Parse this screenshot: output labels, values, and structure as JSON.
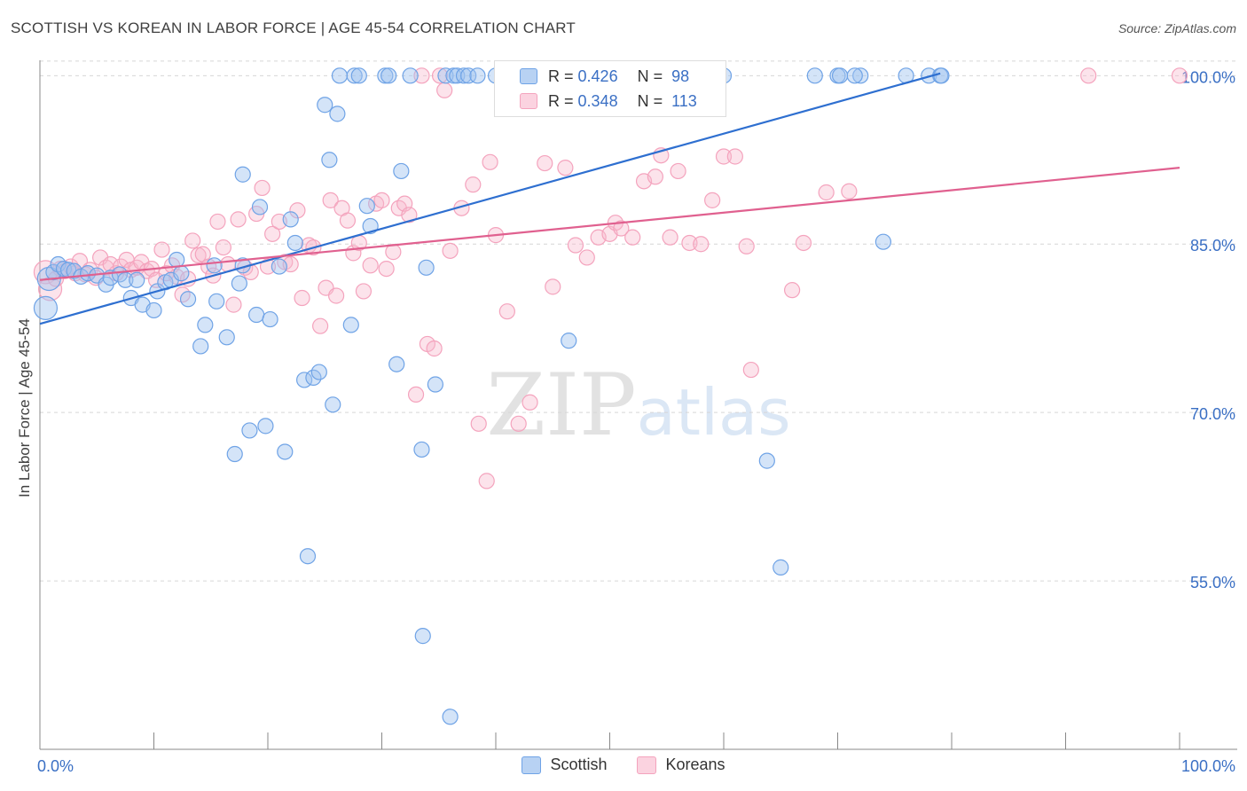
{
  "title": "SCOTTISH VS KOREAN IN LABOR FORCE | AGE 45-54 CORRELATION CHART",
  "source": "Source: ZipAtlas.com",
  "watermark": "ZIPatlas",
  "legend_top": {
    "rows": [
      {
        "r_label": "R =",
        "r_value": "0.426",
        "n_label": "N =",
        "n_value": "98"
      },
      {
        "r_label": "R =",
        "r_value": "0.348",
        "n_label": "N =",
        "n_value": "113"
      }
    ]
  },
  "chart_data": {
    "type": "scatter",
    "title": "SCOTTISH VS KOREAN IN LABOR FORCE | AGE 45-54 CORRELATION CHART",
    "xlabel": "",
    "ylabel": "In Labor Force | Age 45-54",
    "xlim": [
      0,
      100
    ],
    "ylim": [
      40,
      102
    ],
    "x_tick_labels": [
      "0.0%",
      "100.0%"
    ],
    "y_ticks": [
      55,
      70,
      85,
      100
    ],
    "y_tick_labels": [
      "55.0%",
      "70.0%",
      "85.0%",
      "100.0%"
    ],
    "grid": true,
    "legend_position": "bottom",
    "series": [
      {
        "name": "Scottish",
        "color": "#6fa3e6",
        "line_color": "#2e6fd0",
        "trend": {
          "x": [
            0,
            79
          ],
          "y": [
            77.9,
            100.2
          ]
        },
        "points": [
          [
            0.5,
            79.3
          ],
          [
            0.8,
            81.9
          ],
          [
            1.2,
            82.5
          ],
          [
            1.6,
            83.2
          ],
          [
            2.1,
            82.8
          ],
          [
            2.5,
            82.7
          ],
          [
            3.0,
            82.6
          ],
          [
            3.6,
            82.1
          ],
          [
            4.2,
            82.4
          ],
          [
            5.0,
            82.2
          ],
          [
            5.8,
            81.4
          ],
          [
            6.2,
            82.0
          ],
          [
            7.0,
            82.3
          ],
          [
            7.5,
            81.8
          ],
          [
            8.0,
            80.2
          ],
          [
            8.5,
            81.8
          ],
          [
            9.0,
            79.6
          ],
          [
            10.0,
            79.1
          ],
          [
            10.3,
            80.8
          ],
          [
            11.0,
            81.6
          ],
          [
            11.5,
            81.8
          ],
          [
            12.0,
            83.6
          ],
          [
            12.4,
            82.4
          ],
          [
            13.0,
            80.1
          ],
          [
            14.1,
            75.9
          ],
          [
            14.5,
            77.8
          ],
          [
            15.3,
            83.1
          ],
          [
            15.5,
            79.9
          ],
          [
            16.4,
            76.7
          ],
          [
            17.1,
            66.3
          ],
          [
            17.5,
            81.5
          ],
          [
            17.8,
            83.1
          ],
          [
            17.8,
            91.2
          ],
          [
            18.4,
            68.4
          ],
          [
            19.0,
            78.7
          ],
          [
            19.3,
            88.3
          ],
          [
            19.8,
            68.8
          ],
          [
            20.2,
            78.3
          ],
          [
            21.0,
            83.0
          ],
          [
            21.5,
            66.5
          ],
          [
            22.0,
            87.2
          ],
          [
            22.4,
            85.1
          ],
          [
            23.2,
            72.9
          ],
          [
            23.5,
            57.2
          ],
          [
            24.0,
            73.1
          ],
          [
            24.5,
            73.6
          ],
          [
            25.0,
            97.4
          ],
          [
            25.4,
            92.5
          ],
          [
            25.7,
            70.7
          ],
          [
            26.1,
            96.6
          ],
          [
            26.3,
            100.0
          ],
          [
            27.3,
            77.8
          ],
          [
            27.6,
            100.0
          ],
          [
            28.0,
            100.0
          ],
          [
            28.7,
            88.4
          ],
          [
            29.0,
            86.6
          ],
          [
            30.3,
            100.0
          ],
          [
            30.6,
            100.0
          ],
          [
            31.3,
            74.3
          ],
          [
            31.7,
            91.5
          ],
          [
            32.5,
            100.0
          ],
          [
            33.6,
            50.1
          ],
          [
            33.5,
            66.7
          ],
          [
            33.9,
            82.9
          ],
          [
            34.7,
            72.5
          ],
          [
            35.6,
            100.0
          ],
          [
            36.0,
            42.9
          ],
          [
            36.3,
            100.0
          ],
          [
            36.6,
            100.0
          ],
          [
            37.2,
            100.0
          ],
          [
            37.6,
            100.0
          ],
          [
            38.4,
            100.0
          ],
          [
            40.0,
            100.0
          ],
          [
            42.0,
            100.0
          ],
          [
            44.0,
            100.0
          ],
          [
            45.0,
            100.0
          ],
          [
            46.0,
            100.0
          ],
          [
            46.4,
            76.4
          ],
          [
            48.0,
            100.0
          ],
          [
            50.0,
            100.0
          ],
          [
            52.3,
            100.0
          ],
          [
            54.0,
            100.0
          ],
          [
            55.0,
            100.0
          ],
          [
            56.0,
            100.0
          ],
          [
            58.0,
            100.0
          ],
          [
            60.0,
            100.0
          ],
          [
            63.8,
            65.7
          ],
          [
            65.0,
            56.2
          ],
          [
            68.0,
            100.0
          ],
          [
            70.0,
            100.0
          ],
          [
            72.0,
            100.0
          ],
          [
            74.0,
            85.2
          ],
          [
            76.0,
            100.0
          ],
          [
            78.0,
            100.0
          ],
          [
            79.0,
            100.0
          ],
          [
            71.5,
            100.0
          ],
          [
            70.2,
            100.0
          ],
          [
            79.1,
            100.0
          ]
        ]
      },
      {
        "name": "Koreans",
        "color": "#f4a3bd",
        "line_color": "#e0608f",
        "trend": {
          "x": [
            0,
            100
          ],
          "y": [
            81.8,
            91.8
          ]
        },
        "points": [
          [
            0.5,
            82.5
          ],
          [
            0.9,
            81.0
          ],
          [
            1.4,
            81.9
          ],
          [
            1.8,
            82.8
          ],
          [
            2.2,
            82.6
          ],
          [
            2.7,
            83.0
          ],
          [
            3.1,
            82.4
          ],
          [
            3.5,
            83.5
          ],
          [
            4.0,
            82.3
          ],
          [
            4.4,
            82.7
          ],
          [
            4.9,
            82.0
          ],
          [
            5.3,
            83.8
          ],
          [
            5.8,
            82.9
          ],
          [
            6.2,
            83.2
          ],
          [
            6.7,
            82.4
          ],
          [
            7.1,
            83.0
          ],
          [
            7.6,
            83.6
          ],
          [
            8.0,
            82.7
          ],
          [
            8.5,
            82.9
          ],
          [
            8.9,
            83.4
          ],
          [
            9.4,
            82.6
          ],
          [
            9.8,
            82.8
          ],
          [
            10.2,
            81.8
          ],
          [
            10.7,
            84.5
          ],
          [
            11.1,
            82.4
          ],
          [
            11.6,
            83.1
          ],
          [
            12.0,
            82.1
          ],
          [
            12.5,
            80.5
          ],
          [
            13.0,
            81.9
          ],
          [
            13.4,
            85.3
          ],
          [
            13.9,
            84.0
          ],
          [
            14.3,
            84.1
          ],
          [
            14.8,
            83.0
          ],
          [
            15.2,
            82.2
          ],
          [
            15.6,
            87.0
          ],
          [
            16.1,
            84.7
          ],
          [
            16.5,
            83.2
          ],
          [
            17.0,
            79.6
          ],
          [
            17.4,
            87.2
          ],
          [
            18.0,
            82.9
          ],
          [
            18.5,
            82.5
          ],
          [
            19.0,
            87.7
          ],
          [
            19.5,
            90.0
          ],
          [
            20.0,
            83.0
          ],
          [
            20.4,
            85.9
          ],
          [
            21.0,
            87.0
          ],
          [
            21.5,
            83.4
          ],
          [
            22.0,
            83.2
          ],
          [
            22.6,
            88.0
          ],
          [
            23.0,
            80.2
          ],
          [
            23.6,
            84.9
          ],
          [
            24.0,
            84.7
          ],
          [
            24.6,
            77.7
          ],
          [
            25.1,
            81.1
          ],
          [
            25.5,
            88.9
          ],
          [
            26.0,
            80.4
          ],
          [
            26.5,
            88.2
          ],
          [
            27.0,
            87.1
          ],
          [
            27.5,
            84.2
          ],
          [
            28.0,
            85.1
          ],
          [
            28.4,
            80.8
          ],
          [
            29.0,
            83.1
          ],
          [
            29.5,
            88.6
          ],
          [
            30.0,
            88.9
          ],
          [
            30.4,
            82.8
          ],
          [
            31.0,
            84.3
          ],
          [
            31.5,
            88.2
          ],
          [
            32.0,
            88.6
          ],
          [
            32.4,
            87.6
          ],
          [
            33.0,
            71.6
          ],
          [
            33.5,
            100.0
          ],
          [
            34.0,
            76.1
          ],
          [
            34.6,
            75.7
          ],
          [
            35.1,
            100.0
          ],
          [
            35.5,
            98.7
          ],
          [
            36.0,
            84.4
          ],
          [
            37.0,
            88.2
          ],
          [
            38.0,
            90.3
          ],
          [
            38.5,
            69.0
          ],
          [
            39.2,
            63.9
          ],
          [
            39.5,
            92.3
          ],
          [
            40.0,
            85.8
          ],
          [
            41.0,
            79.0
          ],
          [
            42.0,
            69.0
          ],
          [
            43.0,
            70.9
          ],
          [
            44.3,
            92.2
          ],
          [
            45.0,
            81.2
          ],
          [
            46.1,
            91.8
          ],
          [
            47.0,
            84.9
          ],
          [
            48.0,
            83.8
          ],
          [
            49.0,
            85.6
          ],
          [
            50.0,
            85.9
          ],
          [
            50.5,
            86.9
          ],
          [
            51.0,
            86.4
          ],
          [
            52.0,
            85.6
          ],
          [
            53.0,
            90.6
          ],
          [
            54.0,
            91.0
          ],
          [
            54.5,
            92.9
          ],
          [
            55.3,
            85.6
          ],
          [
            56.0,
            91.5
          ],
          [
            57.0,
            85.1
          ],
          [
            58.0,
            85.0
          ],
          [
            59.0,
            88.9
          ],
          [
            60.0,
            92.8
          ],
          [
            61.0,
            92.8
          ],
          [
            62.0,
            84.8
          ],
          [
            62.4,
            73.8
          ],
          [
            66.0,
            80.9
          ],
          [
            67.0,
            85.1
          ],
          [
            69.0,
            89.6
          ],
          [
            71.0,
            89.7
          ],
          [
            92.0,
            100.0
          ],
          [
            100.0,
            100.0
          ]
        ]
      }
    ]
  },
  "bottom_legend": {
    "items": [
      {
        "label": "Scottish"
      },
      {
        "label": "Koreans"
      }
    ]
  }
}
